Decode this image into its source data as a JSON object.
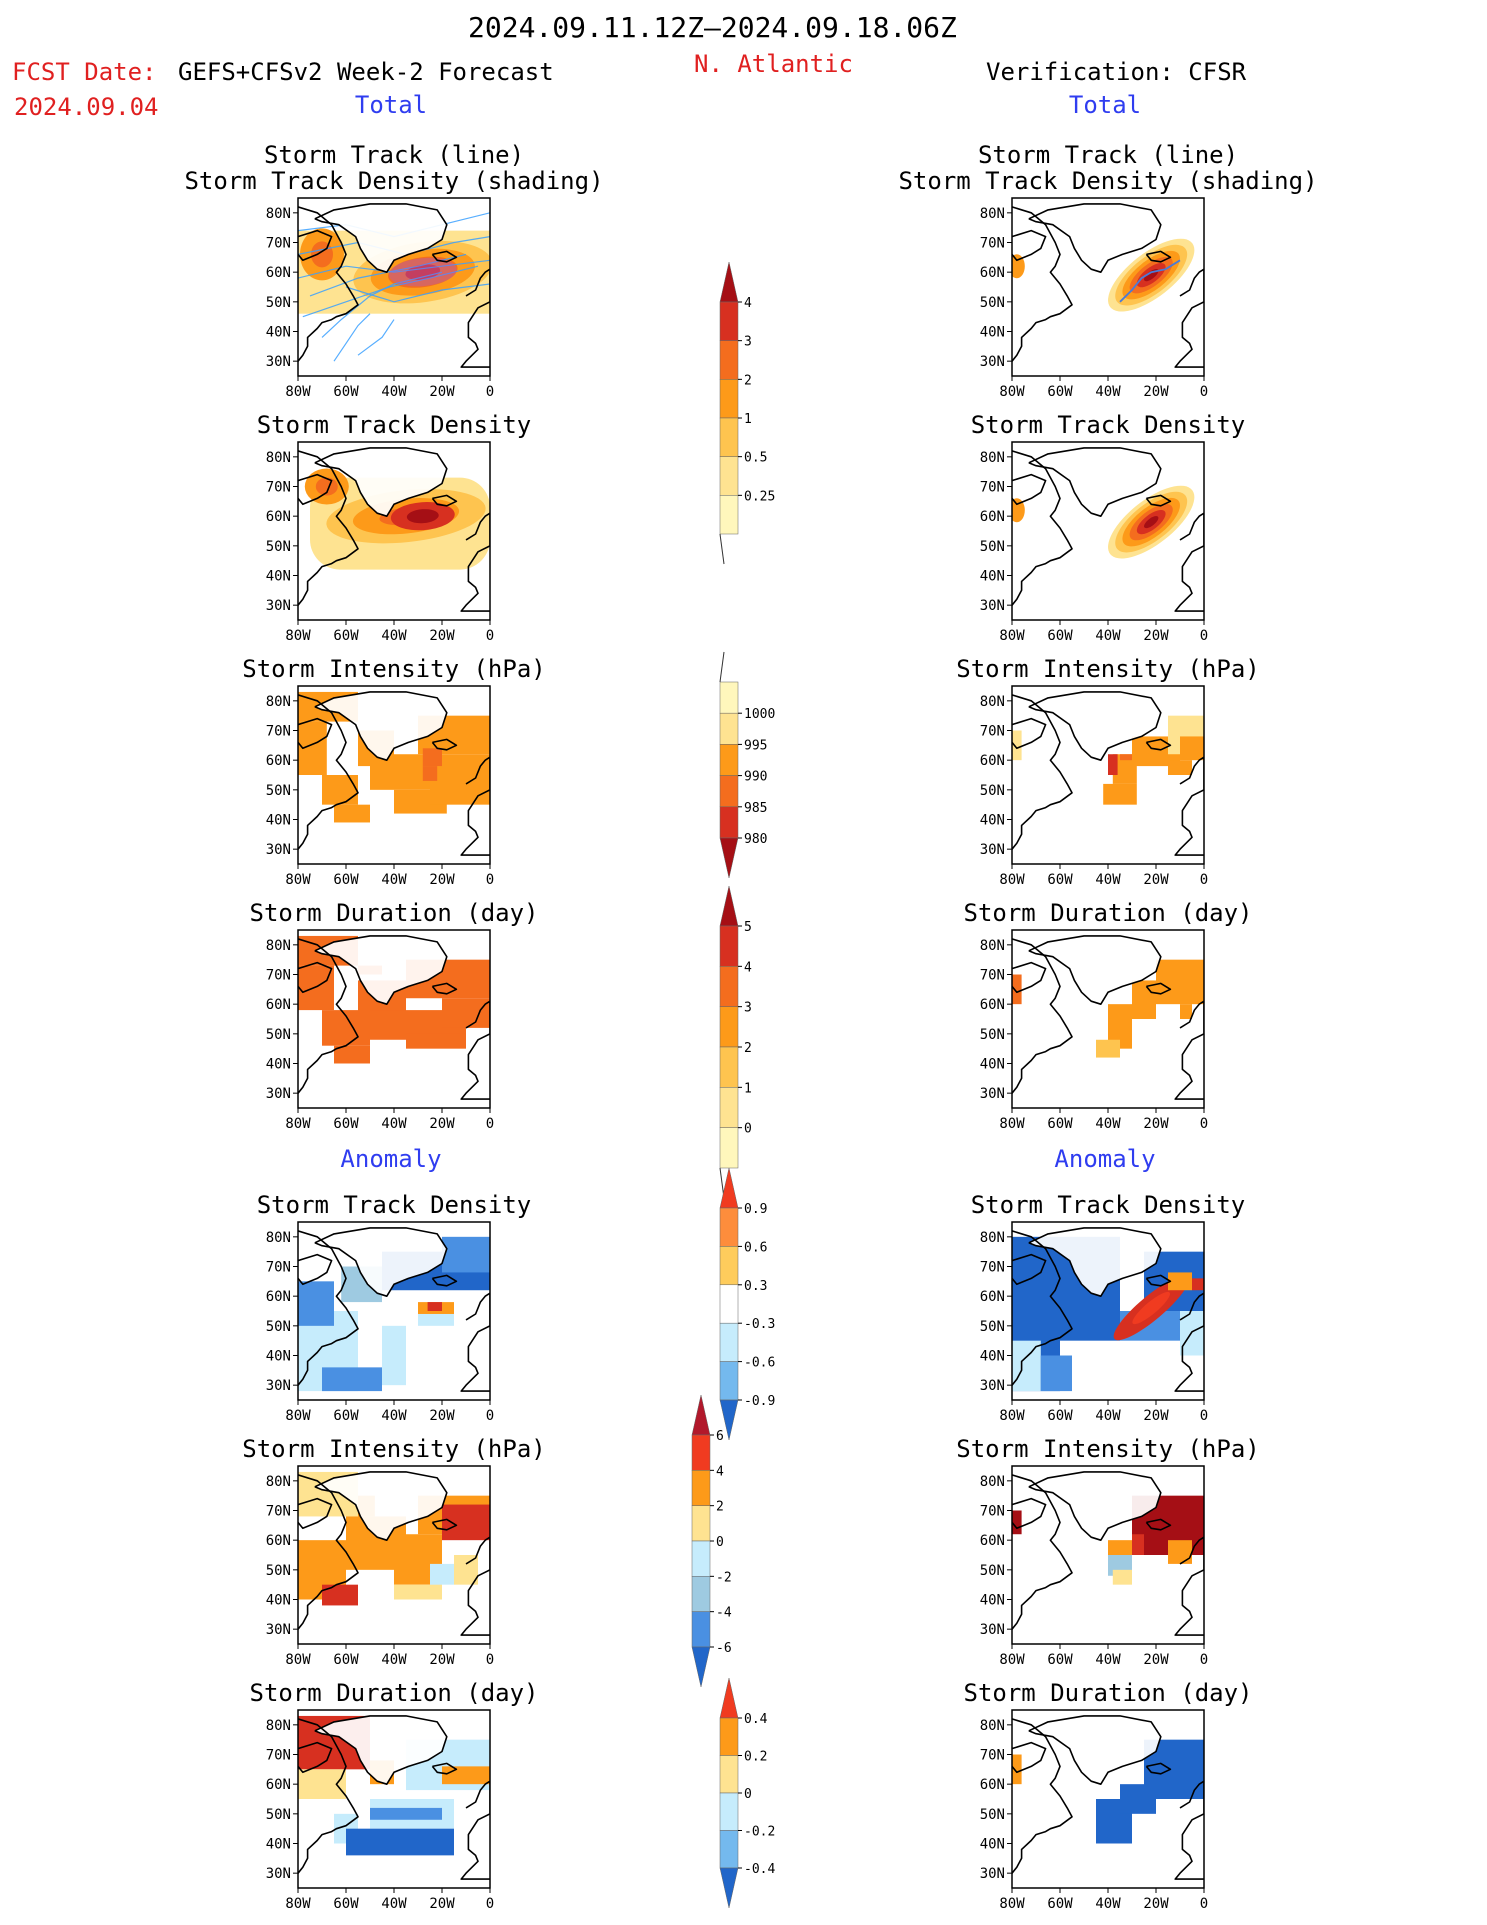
{
  "header": {
    "period": "2024.09.11.12Z–2024.09.18.06Z",
    "fcst_label": "FCST Date:",
    "fcst_date": "2024.09.04",
    "model": "GEFS+CFSv2 Week-2 Forecast",
    "region": "N. Atlantic",
    "verification": "Verification: CFSR"
  },
  "sections": {
    "total": "Total",
    "anomaly": "Anomaly"
  },
  "axes": {
    "lat_ticks": [
      "80N",
      "70N",
      "60N",
      "50N",
      "40N",
      "30N"
    ],
    "lon_ticks": [
      "80W",
      "60W",
      "40W",
      "20W",
      "0"
    ]
  },
  "panel_titles": {
    "track_l1": "Storm Track (line)",
    "track_l2": "Storm Track Density (shading)",
    "density": "Storm Track Density",
    "intensity": "Storm Intensity (hPa)",
    "duration": "Storm Duration (day)"
  },
  "colorbars": [
    {
      "id": "cb-density",
      "labels": [
        "4",
        "3",
        "2",
        "1",
        "0.5",
        "0.25"
      ],
      "colors": [
        "#a50f15",
        "#d73020",
        "#f46d1e",
        "#fd9a19",
        "#fec44f",
        "#fee391",
        "#fff7bc"
      ]
    },
    {
      "id": "cb-intensity",
      "labels": [
        "1000",
        "995",
        "990",
        "985",
        "980"
      ],
      "colors": [
        "#fff7bc",
        "#fee391",
        "#fd9a19",
        "#f46d1e",
        "#d73020",
        "#a50f15"
      ]
    },
    {
      "id": "cb-duration",
      "labels": [
        "5",
        "4",
        "3",
        "2",
        "1",
        "0"
      ],
      "colors": [
        "#a50f15",
        "#d73020",
        "#f46d1e",
        "#fd9a19",
        "#fec44f",
        "#fee391",
        "#fff7bc"
      ]
    },
    {
      "id": "cb-density-anom",
      "labels": [
        "0.9",
        "0.6",
        "0.3",
        "-0.3",
        "-0.6",
        "-0.9"
      ],
      "colors": [
        "#f03b20",
        "#fd8d3c",
        "#fecc5c",
        "#ffffff",
        "#c6ecfc",
        "#74b9ee",
        "#2166c9"
      ]
    },
    {
      "id": "cb-intensity-anom",
      "labels": [
        "6",
        "4",
        "2",
        "0",
        "-2",
        "-4",
        "-6"
      ],
      "colors": [
        "#b2182b",
        "#f03b20",
        "#fd9a19",
        "#fee391",
        "#c6ecfc",
        "#9ecae1",
        "#4a90e2",
        "#2166c9"
      ]
    },
    {
      "id": "cb-duration-anom",
      "labels": [
        "0.4",
        "0.2",
        "0",
        "-0.2",
        "-0.4"
      ],
      "colors": [
        "#f03b20",
        "#fd9a19",
        "#fee391",
        "#c6ecfc",
        "#74b9ee",
        "#2166c9"
      ]
    }
  ],
  "chart_data": [
    {
      "type": "heatmap",
      "name": "Storm Track (line) / Storm Track Density (shading)",
      "column": "GEFS+CFSv2 Week-2 Forecast",
      "section": "Total",
      "xlim": [
        -80,
        0
      ],
      "ylim": [
        25,
        85
      ],
      "xlabel": "",
      "ylabel": "",
      "blobs": [
        {
          "lon": -28,
          "lat": 60,
          "value": 4
        },
        {
          "lon": -45,
          "lat": 62,
          "value": 2
        },
        {
          "lon": -65,
          "lat": 65,
          "value": 2
        }
      ],
      "has_track_lines": true
    },
    {
      "type": "heatmap",
      "name": "Storm Track (line) / Storm Track Density (shading)",
      "column": "Verification: CFSR",
      "section": "Total",
      "xlim": [
        -80,
        0
      ],
      "ylim": [
        25,
        85
      ],
      "blobs": [
        {
          "lon": -22,
          "lat": 59,
          "value": 4
        }
      ],
      "has_track_lines": true
    },
    {
      "type": "heatmap",
      "name": "Storm Track Density",
      "column": "GEFS+CFSv2 Week-2 Forecast",
      "section": "Total",
      "xlim": [
        -80,
        0
      ],
      "ylim": [
        25,
        85
      ],
      "blobs": [
        {
          "lon": -28,
          "lat": 60,
          "value": 4
        },
        {
          "lon": -45,
          "lat": 63,
          "value": 2
        },
        {
          "lon": -70,
          "lat": 68,
          "value": 2
        }
      ]
    },
    {
      "type": "heatmap",
      "name": "Storm Track Density",
      "column": "Verification: CFSR",
      "section": "Total",
      "xlim": [
        -80,
        0
      ],
      "ylim": [
        25,
        85
      ],
      "blobs": [
        {
          "lon": -22,
          "lat": 58,
          "value": 4
        }
      ]
    },
    {
      "type": "heatmap",
      "name": "Storm Intensity (hPa)",
      "column": "GEFS+CFSv2 Week-2 Forecast",
      "section": "Total",
      "xlim": [
        -80,
        0
      ],
      "ylim": [
        25,
        85
      ],
      "range_hPa": [
        985,
        1000
      ],
      "min_value_hPa": 990
    },
    {
      "type": "heatmap",
      "name": "Storm Intensity (hPa)",
      "column": "Verification: CFSR",
      "section": "Total",
      "xlim": [
        -80,
        0
      ],
      "ylim": [
        25,
        85
      ],
      "range_hPa": [
        985,
        1000
      ],
      "min_value_hPa": 985
    },
    {
      "type": "heatmap",
      "name": "Storm Duration (day)",
      "column": "GEFS+CFSv2 Week-2 Forecast",
      "section": "Total",
      "xlim": [
        -80,
        0
      ],
      "ylim": [
        25,
        85
      ],
      "typical_value_day": 3
    },
    {
      "type": "heatmap",
      "name": "Storm Duration (day)",
      "column": "Verification: CFSR",
      "section": "Total",
      "xlim": [
        -80,
        0
      ],
      "ylim": [
        25,
        85
      ],
      "typical_value_day": 2
    },
    {
      "type": "heatmap",
      "name": "Storm Track Density",
      "column": "GEFS+CFSv2 Week-2 Forecast",
      "section": "Anomaly",
      "xlim": [
        -80,
        0
      ],
      "ylim": [
        25,
        85
      ],
      "range": [
        -0.9,
        0.9
      ]
    },
    {
      "type": "heatmap",
      "name": "Storm Track Density",
      "column": "Verification: CFSR",
      "section": "Anomaly",
      "xlim": [
        -80,
        0
      ],
      "ylim": [
        25,
        85
      ],
      "range": [
        -0.9,
        0.9
      ]
    },
    {
      "type": "heatmap",
      "name": "Storm Intensity (hPa)",
      "column": "GEFS+CFSv2 Week-2 Forecast",
      "section": "Anomaly",
      "xlim": [
        -80,
        0
      ],
      "ylim": [
        25,
        85
      ],
      "range": [
        -6,
        6
      ]
    },
    {
      "type": "heatmap",
      "name": "Storm Intensity (hPa)",
      "column": "Verification: CFSR",
      "section": "Anomaly",
      "xlim": [
        -80,
        0
      ],
      "ylim": [
        25,
        85
      ],
      "range": [
        -6,
        6
      ]
    },
    {
      "type": "heatmap",
      "name": "Storm Duration (day)",
      "column": "GEFS+CFSv2 Week-2 Forecast",
      "section": "Anomaly",
      "xlim": [
        -80,
        0
      ],
      "ylim": [
        25,
        85
      ],
      "range": [
        -0.4,
        0.4
      ]
    },
    {
      "type": "heatmap",
      "name": "Storm Duration (day)",
      "column": "Verification: CFSR",
      "section": "Anomaly",
      "xlim": [
        -80,
        0
      ],
      "ylim": [
        25,
        85
      ],
      "range": [
        -0.4,
        0.4
      ]
    }
  ]
}
